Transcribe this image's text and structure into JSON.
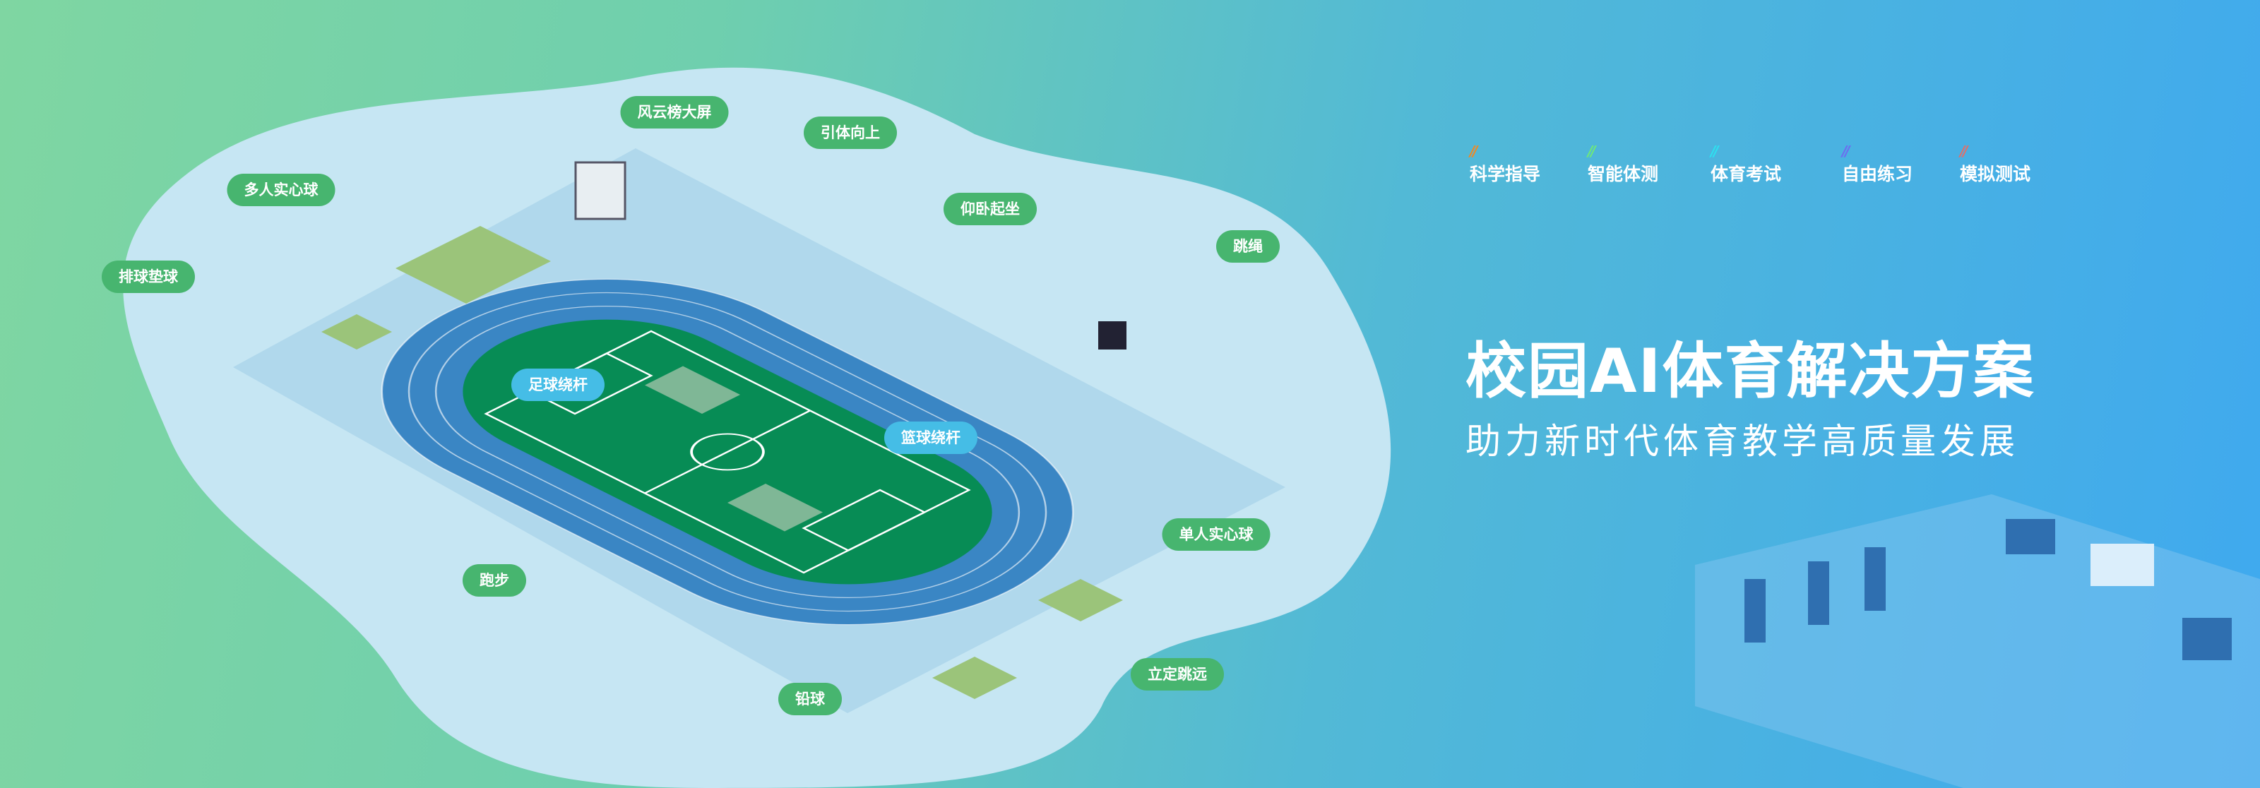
{
  "features": [
    {
      "label": "科学指导",
      "color": "#f08a24"
    },
    {
      "label": "智能体测",
      "color": "#6ee87a"
    },
    {
      "label": "体育考试",
      "color": "#2de0f0"
    },
    {
      "label": "自由练习",
      "color": "#6d6cf0"
    },
    {
      "label": "模拟测试",
      "color": "#e0706a"
    }
  ],
  "hero": {
    "title": "校园AI体育解决方案",
    "subtitle": "助力新时代体育教学高质量发展"
  },
  "stations": {
    "leaderboard": "风云榜大屏",
    "pullup": "引体向上",
    "multi_ball": "多人实心球",
    "situp": "仰卧起坐",
    "volleyball": "排球垫球",
    "rope": "跳绳",
    "football": "足球绕杆",
    "basketball": "篮球绕杆",
    "single_ball": "单人实心球",
    "running": "跑步",
    "long_jump": "立定跳远",
    "shot_put": "铅球"
  },
  "colors": {
    "label_green": "#47b56f",
    "label_blue": "#45bde6",
    "track": "#3a86c4",
    "field": "#078c55",
    "blob": "#c6e6f3"
  }
}
